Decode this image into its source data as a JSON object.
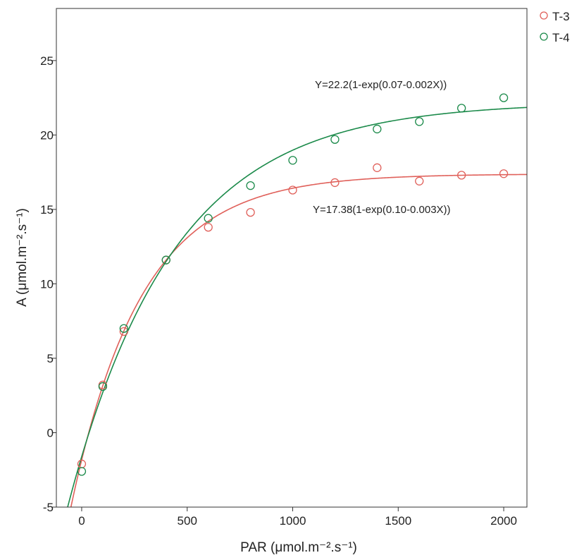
{
  "chart_data": {
    "type": "scatter",
    "xlabel": "PAR (μmol.m⁻².s⁻¹)",
    "ylabel": "A (μmol.m⁻².s⁻¹)",
    "xlim": [
      -120,
      2110
    ],
    "ylim": [
      -5,
      28.5
    ],
    "xticks": [
      0,
      500,
      1000,
      1500,
      2000
    ],
    "yticks": [
      -5,
      0,
      5,
      10,
      15,
      20,
      25
    ],
    "grid": false,
    "legend_position": "top-right",
    "series": [
      {
        "name": "T-3",
        "color": "#e0605a",
        "x": [
          0,
          100,
          200,
          400,
          600,
          800,
          1000,
          1200,
          1400,
          1600,
          1800,
          2000
        ],
        "y": [
          -2.1,
          3.2,
          6.8,
          11.6,
          13.8,
          14.8,
          16.3,
          16.8,
          17.8,
          16.9,
          17.3,
          17.4
        ],
        "fit": {
          "a": 17.38,
          "b": 0.1,
          "c": 0.003
        },
        "equation": "Y=17.38(1-exp(0.10-0.003X))"
      },
      {
        "name": "T-4",
        "color": "#1b8a4a",
        "x": [
          0,
          100,
          200,
          400,
          600,
          800,
          1000,
          1200,
          1400,
          1600,
          1800,
          2000
        ],
        "y": [
          -2.6,
          3.1,
          7.0,
          11.6,
          14.4,
          16.6,
          18.3,
          19.7,
          20.4,
          20.9,
          21.8,
          22.5
        ],
        "fit": {
          "a": 22.2,
          "b": 0.07,
          "c": 0.002
        },
        "equation": "Y=22.2(1-exp(0.07-0.002X))"
      }
    ]
  }
}
